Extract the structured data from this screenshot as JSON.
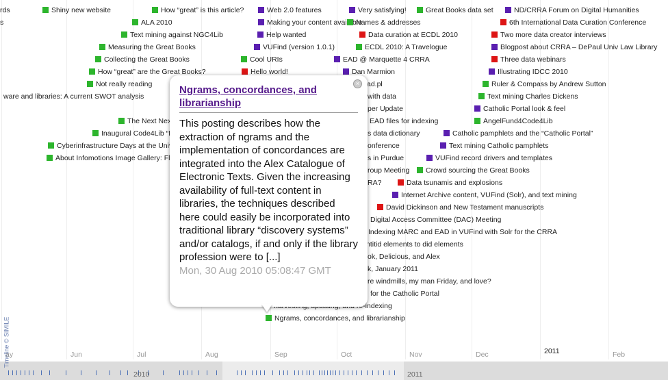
{
  "events": [
    {
      "label": "rds",
      "color": null
    },
    {
      "label": "Shiny new website",
      "color": "#2db52d"
    },
    {
      "label": "How “great” is this article?",
      "color": "#2db52d"
    },
    {
      "label": "Web 2.0 features",
      "color": "#5a1fb0"
    },
    {
      "label": "Very satisfying!",
      "color": "#5a1fb0"
    },
    {
      "label": "Great Books data set",
      "color": "#2db52d"
    },
    {
      "label": "ND/CRRA Forum on Digital Humanities",
      "color": "#5a1fb0"
    },
    {
      "label": "s",
      "color": null
    },
    {
      "label": "ALA 2010",
      "color": "#2db52d"
    },
    {
      "label": "Making your content available",
      "color": "#5a1fb0"
    },
    {
      "label": "Names & addresses",
      "color": "#2db52d"
    },
    {
      "label": "6th International Data Curation Conference",
      "color": "#dd1515"
    },
    {
      "label": "Text mining against NGC4Lib",
      "color": "#2db52d"
    },
    {
      "label": "Help wanted",
      "color": "#5a1fb0"
    },
    {
      "label": "Data curation at ECDL 2010",
      "color": "#dd1515"
    },
    {
      "label": "Two more data creator interviews",
      "color": "#dd1515"
    },
    {
      "label": "Measuring the Great Books",
      "color": "#2db52d"
    },
    {
      "label": "VUFind (version 1.0.1)",
      "color": "#5a1fb0"
    },
    {
      "label": "ECDL 2010: A Travelogue",
      "color": "#2db52d"
    },
    {
      "label": "Blogpost about CRRA – DePaul Univ Law Library",
      "color": "#5a1fb0"
    },
    {
      "label": "Collecting the Great Books",
      "color": "#2db52d"
    },
    {
      "label": "Cool URIs",
      "color": "#2db52d"
    },
    {
      "label": "EAD @ Marquette 4 CRRA",
      "color": "#5a1fb0"
    },
    {
      "label": "Three data webinars",
      "color": "#dd1515"
    },
    {
      "label": "How “great” are the Great Books?",
      "color": "#2db52d"
    },
    {
      "label": "Hello world!",
      "color": "#dd1515"
    },
    {
      "label": "Dan Marmion",
      "color": "#5a1fb0"
    },
    {
      "label": "Illustrating IDCC 2010",
      "color": "#5a1fb0"
    },
    {
      "label": "Not really reading",
      "color": "#2db52d"
    },
    {
      "label": "ad.pl",
      "color": null
    },
    {
      "label": "Ruler & Compass by Andrew Sutton",
      "color": "#2db52d"
    },
    {
      "label": "ware and libraries: A current SWOT analysis",
      "color": null
    },
    {
      "label": "with data",
      "color": null
    },
    {
      "label": "Text mining Charles Dickens",
      "color": "#2db52d"
    },
    {
      "label": "per Update",
      "color": null
    },
    {
      "label": "Catholic Portal look & feel",
      "color": "#5a1fb0"
    },
    {
      "label": "The Next Nex",
      "color": "#2db52d"
    },
    {
      "label": "EAD files for indexing",
      "color": null
    },
    {
      "label": "AngelFund4Code4Lib",
      "color": "#2db52d"
    },
    {
      "label": "Inaugural Code4Lib “Ice",
      "color": "#2db52d"
    },
    {
      "label": "s data dictionary",
      "color": null
    },
    {
      "label": "Catholic pamphlets and the “Catholic Portal”",
      "color": "#5a1fb0"
    },
    {
      "label": "Cyberinfrastructure Days at the Univ",
      "color": "#2db52d"
    },
    {
      "label": "onference",
      "color": null
    },
    {
      "label": "Text mining Catholic pamphlets",
      "color": "#5a1fb0"
    },
    {
      "label": "About Infomotions Image Gallery: Fl",
      "color": "#2db52d"
    },
    {
      "label": "s in Purdue",
      "color": null
    },
    {
      "label": "VUFind record drivers and templates",
      "color": "#5a1fb0"
    },
    {
      "label": "roup Meeting",
      "color": null
    },
    {
      "label": "Crowd sourcing the Great Books",
      "color": "#2db52d"
    },
    {
      "label": "RA?",
      "color": null
    },
    {
      "label": "Data tsunamis and explosions",
      "color": "#dd1515"
    },
    {
      "label": "Internet Archive content, VUFind (Solr), and text mining",
      "color": "#5a1fb0"
    },
    {
      "label": "David Dickinson and New Testament manuscripts",
      "color": "#dd1515"
    },
    {
      "label": "Digital Access Committee (DAC) Meeting",
      "color": null
    },
    {
      "label": "Indexing MARC and EAD in VUFind with Solr for the CRRA",
      "color": null
    },
    {
      "label": "ntitid elements to did elements",
      "color": null
    },
    {
      "label": "ok, Delicious, and Alex",
      "color": null
    },
    {
      "label": "k, January 2011",
      "color": null
    },
    {
      "label": "re windmills, my man Friday, and love?",
      "color": null
    },
    {
      "label": "for the Catholic Portal",
      "color": null
    },
    {
      "label": "harvesting, updating, and re-indexing",
      "color": null
    },
    {
      "label": "Ngrams, concordances, and librarianship",
      "color": "#2db52d"
    }
  ],
  "axis": {
    "months": [
      "ay",
      "Jun",
      "Jul",
      "Aug",
      "Sep",
      "Oct",
      "Nov",
      "Dec",
      "2011",
      "Feb"
    ],
    "overview_years": [
      "2010",
      "2011"
    ]
  },
  "credit": "Timeline © SIMILE",
  "popup": {
    "title": "Ngrams, concordances, and librarianship",
    "body": "This posting describes how the extraction of ngrams and the implementation of concordances are integrated into the Alex Catalogue of Electronic Texts. Given the increasing availability of full-text content in libraries, the techniques described here could easily be incorporated into traditional library “discovery systems” and/or catalogs, if and only if the library profession were to [...]",
    "date": "Mon, 30 Aug 2010 05:08:47 GMT"
  }
}
